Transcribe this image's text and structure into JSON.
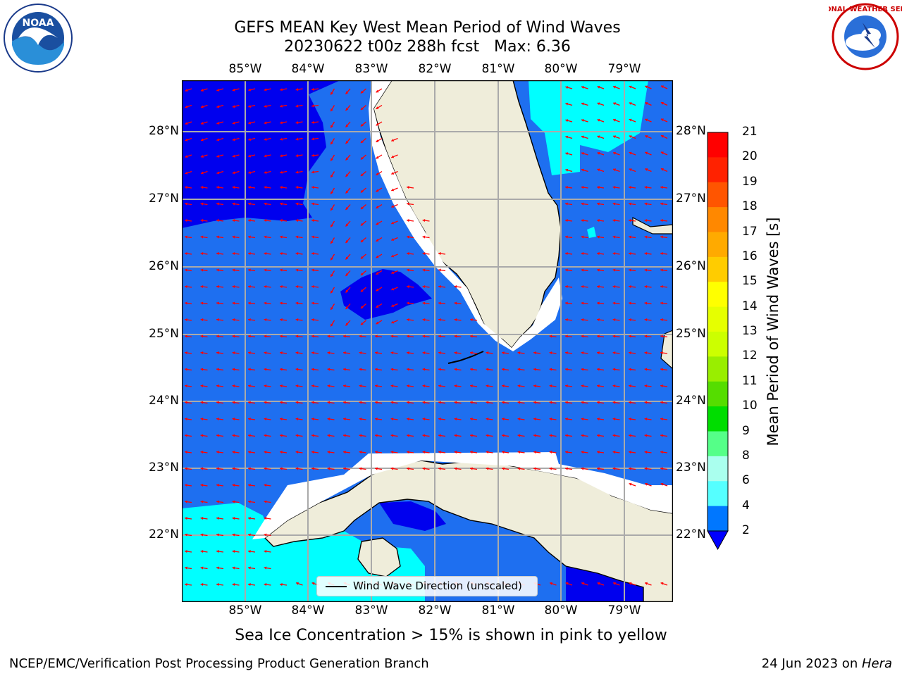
{
  "title_line1": "GEFS MEAN Key West Mean Period of Wind Waves",
  "title_line2": "20230622 t00z 288h fcst   Max: 6.36",
  "lon_labels": [
    "85°W",
    "84°W",
    "83°W",
    "82°W",
    "81°W",
    "80°W",
    "79°W"
  ],
  "lat_labels": [
    "28°N",
    "27°N",
    "26°N",
    "25°N",
    "24°N",
    "23°N",
    "22°N"
  ],
  "legend_label": "Wind Wave Direction (unscaled)",
  "colorbar": {
    "label": "Mean Period of Wind Waves [s]",
    "ticks": [
      "21",
      "20",
      "19",
      "18",
      "17",
      "16",
      "15",
      "14",
      "13",
      "12",
      "11",
      "10",
      "9",
      "8",
      "6",
      "4",
      "2"
    ],
    "colors": [
      "#ff0000",
      "#ff2200",
      "#ff5500",
      "#ff8800",
      "#ffaa00",
      "#ffcc00",
      "#ffff00",
      "#e6ff00",
      "#ccff00",
      "#99ee00",
      "#55dd00",
      "#00dd00",
      "#55ff88",
      "#aaffee",
      "#55ffff",
      "#00ffff",
      "#0077ff"
    ],
    "under_color": "#0000ff"
  },
  "map_colors": {
    "ocean_mid": "#1e6ff0",
    "ocean_low": "#0000ee",
    "ocean_high": "#00ffff",
    "land": "#efedda",
    "arrow": "#ff0000",
    "grid": "#aaaaaa"
  },
  "footnote": "Sea Ice Concentration > 15% is shown in pink to yellow",
  "footer_left": "NCEP/EMC/Verification Post Processing Product Generation Branch",
  "footer_right_date": "24 Jun 2023 on ",
  "footer_right_host": "Hera",
  "logos": {
    "noaa_text": "NOAA",
    "nws_text": "NATIONAL WEATHER SERVICE"
  }
}
